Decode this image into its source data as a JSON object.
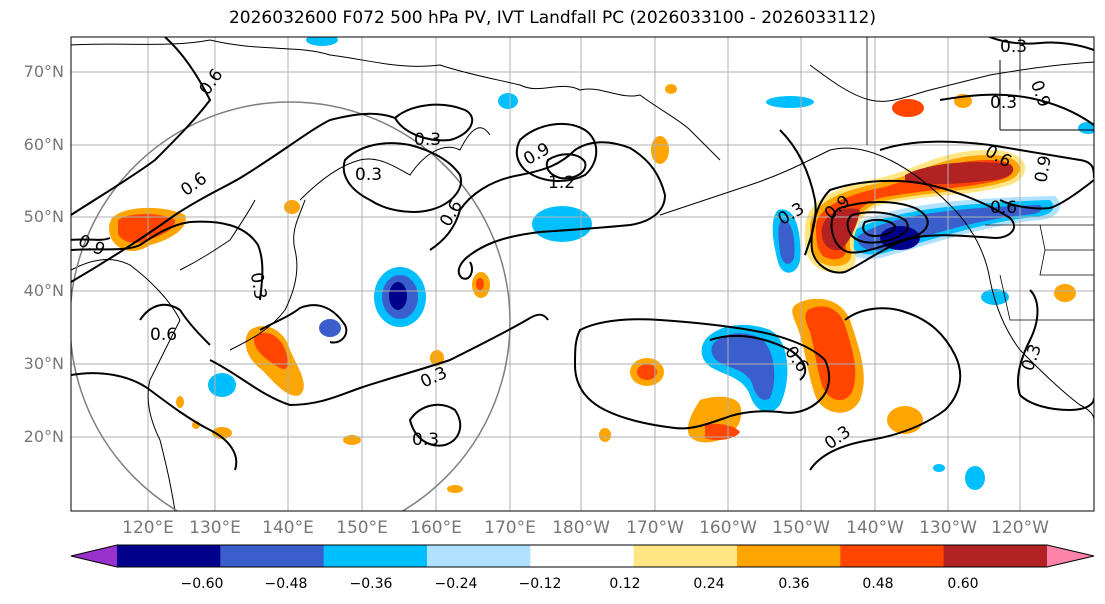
{
  "title": "2026032600 F072 500 hPa PV, IVT Landfall PC (2026033100 - 2026033112)",
  "lat_labels": [
    "70°N",
    "60°N",
    "50°N",
    "40°N",
    "30°N",
    "20°N"
  ],
  "lon_labels": [
    "120°E",
    "130°E",
    "140°E",
    "150°E",
    "160°E",
    "170°E",
    "180°W",
    "170°W",
    "160°W",
    "150°W",
    "140°W",
    "130°W",
    "120°W"
  ],
  "colorbar": {
    "ticks": [
      "−0.60",
      "−0.48",
      "−0.36",
      "−0.24",
      "−0.12",
      "0.12",
      "0.24",
      "0.36",
      "0.48",
      "0.60"
    ],
    "colors": [
      "#9932cc",
      "#00008b",
      "#3a5fcd",
      "#00bfff",
      "#b0e2ff",
      "#ffffff",
      "#ffe682",
      "#ffa500",
      "#ff4500",
      "#b22222",
      "#ff82ab"
    ]
  },
  "contour_labels": [
    "0.3",
    "0.6",
    "0.9",
    "1.2"
  ]
}
